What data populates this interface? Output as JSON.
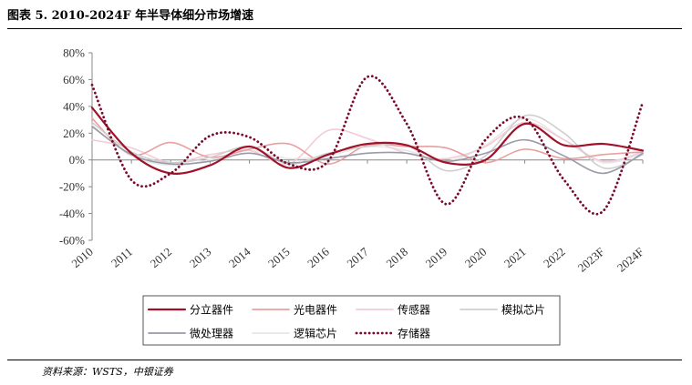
{
  "header": {
    "title": "图表 5. 2010-2024F 年半导体细分市场增速"
  },
  "footer": {
    "source": "资料来源：WSTS，中银证券"
  },
  "chart_data": {
    "type": "line",
    "title": "图表 5. 2010-2024F 年半导体细分市场增速",
    "xlabel": "",
    "ylabel": "",
    "categories": [
      "2010",
      "2011",
      "2012",
      "2013",
      "2014",
      "2015",
      "2016",
      "2017",
      "2018",
      "2019",
      "2020",
      "2021",
      "2022",
      "2023F",
      "2024F"
    ],
    "ylim": [
      -60,
      80
    ],
    "yticks": [
      -60,
      -40,
      -20,
      0,
      20,
      40,
      60,
      80
    ],
    "ytick_labels": [
      "-60%",
      "-40%",
      "-20%",
      "0%",
      "20%",
      "40%",
      "60%",
      "80%"
    ],
    "grid": false,
    "legend_position": "bottom",
    "series": [
      {
        "name": "分立器件",
        "color": "#a0122a",
        "dash": "solid",
        "width": 2.2,
        "values": [
          39,
          5,
          -10,
          -4,
          10,
          -6,
          4,
          12,
          11,
          -2,
          0,
          27,
          11,
          12,
          7
        ]
      },
      {
        "name": "光电器件",
        "color": "#e8a0a0",
        "dash": "solid",
        "width": 1.6,
        "values": [
          31,
          4,
          13,
          2,
          8,
          12,
          -3,
          11,
          10,
          9,
          -2,
          8,
          1,
          4,
          6
        ]
      },
      {
        "name": "传感器",
        "color": "#f3cbd8",
        "dash": "solid",
        "width": 1.6,
        "values": [
          15,
          9,
          -2,
          4,
          7,
          -3,
          22,
          16,
          5,
          1,
          10,
          28,
          15,
          -1,
          6
        ]
      },
      {
        "name": "模拟芯片",
        "color": "#cfcfcf",
        "dash": "solid",
        "width": 1.6,
        "values": [
          28,
          6,
          -2,
          2,
          10,
          -3,
          5,
          10,
          11,
          -8,
          3,
          33,
          20,
          -6,
          4
        ]
      },
      {
        "name": "微处理器",
        "color": "#9a9aa8",
        "dash": "solid",
        "width": 1.6,
        "values": [
          25,
          4,
          -3,
          -1,
          5,
          -2,
          1,
          5,
          5,
          -1,
          5,
          15,
          3,
          -10,
          5
        ]
      },
      {
        "name": "逻辑芯片",
        "color": "#e8e8e8",
        "dash": "solid",
        "width": 1.6,
        "values": [
          26,
          3,
          -4,
          0,
          7,
          1,
          3,
          10,
          7,
          -1,
          11,
          31,
          15,
          -2,
          5
        ]
      },
      {
        "name": "存储器",
        "color": "#7a0a2a",
        "dash": "dotted",
        "width": 2.8,
        "values": [
          56,
          -15,
          -10,
          18,
          17,
          -3,
          -1,
          62,
          27,
          -33,
          15,
          31,
          -15,
          -38,
          43
        ]
      }
    ]
  }
}
